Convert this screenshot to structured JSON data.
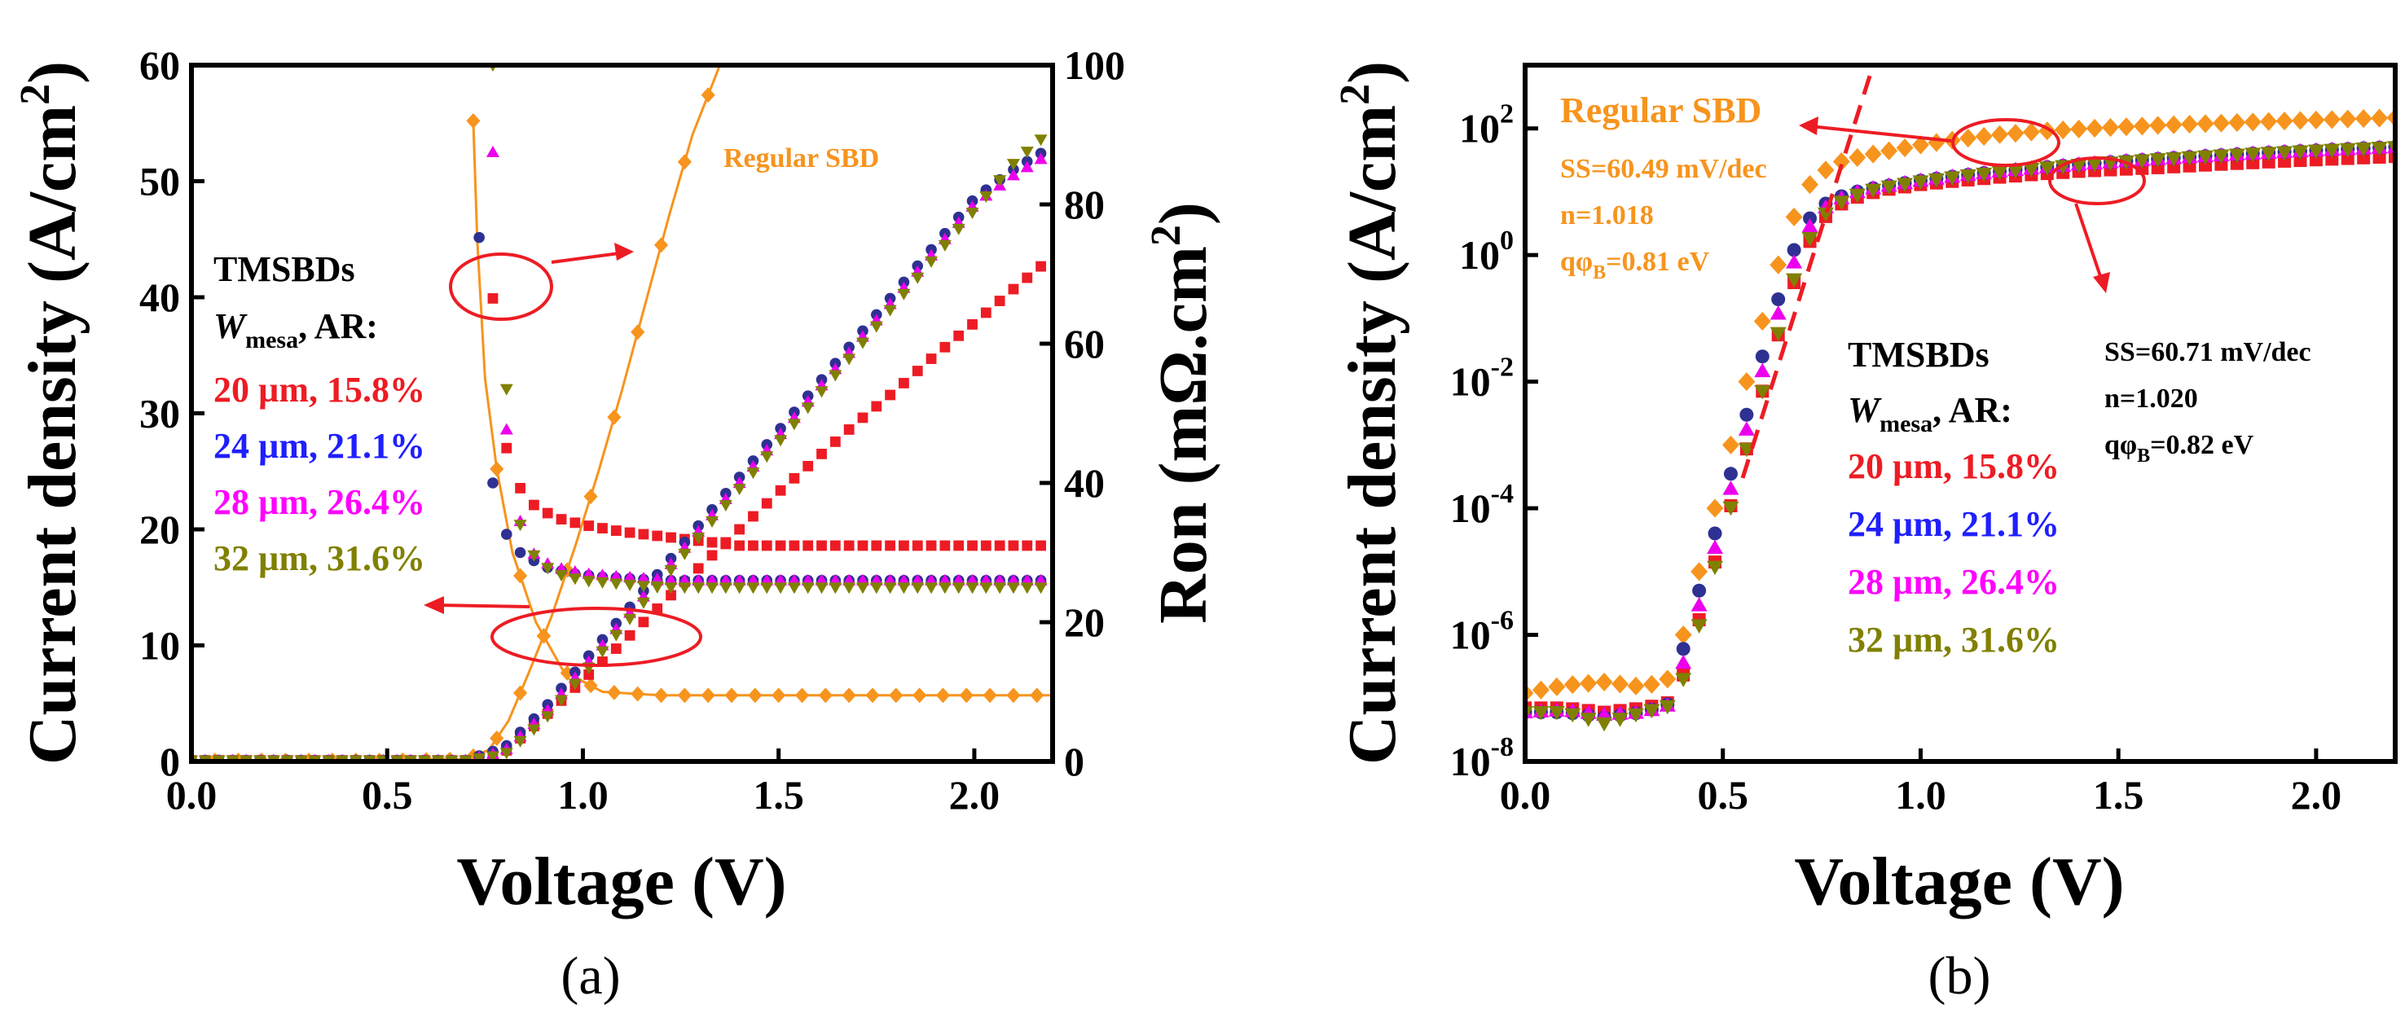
{
  "chart_data": [
    {
      "type": "line",
      "panel_caption": "(a)",
      "xlabel": "Voltage (V)",
      "ylabel": "Current density (A/cm",
      "ylabel_sup": "2",
      "ylabel_close": ")",
      "y2label": "Ron (mΩ.cm",
      "y2label_sup": "2",
      "y2label_close": ")",
      "xlim": [
        0,
        2.2
      ],
      "ylim": [
        0,
        60
      ],
      "y2lim": [
        0,
        100
      ],
      "xticks": [
        "0.0",
        "0.5",
        "1.0",
        "1.5",
        "2.0"
      ],
      "yticks": [
        "0",
        "10",
        "20",
        "30",
        "40",
        "50",
        "60"
      ],
      "y2ticks": [
        "0",
        "20",
        "40",
        "60",
        "80",
        "100"
      ],
      "series": [
        {
          "name": "Regular SBD",
          "axis": "left",
          "color": "#f7941d",
          "marker": "diamond",
          "x": [
            0,
            0.5,
            0.7,
            0.76,
            0.81,
            0.86,
            0.92,
            0.98,
            1.04,
            1.1,
            1.16,
            1.22,
            1.28,
            1.35
          ],
          "y": [
            0.1,
            0.1,
            0.2,
            1.0,
            3.5,
            7.5,
            12.5,
            18.5,
            25.0,
            32.0,
            39.5,
            47.0,
            54.0,
            60.0
          ]
        },
        {
          "name": "Regular SBD Ron",
          "axis": "right",
          "color": "#f7941d",
          "marker": "diamond",
          "x": [
            0.72,
            0.73,
            0.75,
            0.78,
            0.82,
            0.88,
            0.95,
            1.05,
            1.2,
            1.4,
            1.6,
            1.8,
            2.0,
            2.2
          ],
          "y": [
            92,
            75,
            55,
            42,
            30,
            20,
            13,
            10,
            9.5,
            9.5,
            9.5,
            9.5,
            9.5,
            9.5
          ]
        },
        {
          "name": "20 µm, 15.8%",
          "axis": "left",
          "color": "#ed1c24",
          "marker": "square",
          "x": [
            0,
            0.5,
            0.7,
            0.8,
            0.9,
            1.0,
            1.1,
            1.2,
            1.3,
            1.4,
            1.5,
            1.6,
            1.7,
            1.8,
            1.9,
            2.0,
            2.1,
            2.2
          ],
          "y": [
            0.1,
            0.1,
            0.1,
            0.8,
            3.8,
            7.0,
            10.2,
            13.5,
            16.8,
            20.0,
            23.2,
            26.2,
            29.2,
            32.0,
            35.0,
            37.8,
            40.7,
            43.5
          ]
        },
        {
          "name": "20 µm, 15.8% Ron",
          "axis": "right",
          "color": "#ed1c24",
          "marker": "square",
          "x": [
            0.74,
            0.76,
            0.78,
            0.8,
            0.83,
            0.87,
            0.93,
            1.0,
            1.1,
            1.25,
            1.4,
            1.6,
            1.8,
            2.0,
            2.2
          ],
          "y": [
            100,
            75,
            58,
            46,
            40,
            37,
            35,
            34,
            33,
            32,
            31,
            31,
            31,
            31,
            31
          ]
        },
        {
          "name": "24 µm, 21.1%",
          "axis": "left",
          "color": "#2e3192",
          "marker": "circle",
          "x": [
            0,
            0.5,
            0.7,
            0.8,
            0.9,
            1.0,
            1.1,
            1.2,
            1.3,
            1.4,
            1.5,
            1.6,
            1.7,
            1.8,
            1.9,
            2.0,
            2.1,
            2.2
          ],
          "y": [
            0.1,
            0.1,
            0.1,
            1.2,
            4.5,
            8.5,
            12.5,
            16.5,
            20.5,
            24.5,
            28.5,
            32.5,
            36.5,
            40.5,
            44.5,
            48.5,
            51.0,
            53.0
          ]
        },
        {
          "name": "24 µm, 21.1% Ron",
          "axis": "right",
          "color": "#2e3192",
          "marker": "circle",
          "x": [
            0.73,
            0.75,
            0.77,
            0.8,
            0.84,
            0.9,
            0.97,
            1.05,
            1.2,
            1.4,
            1.6,
            1.8,
            2.0,
            2.2
          ],
          "y": [
            82,
            55,
            40,
            33,
            30,
            28,
            27,
            26.5,
            26,
            26,
            26,
            26,
            26,
            26
          ]
        },
        {
          "name": "28 µm, 26.4%",
          "axis": "left",
          "color": "#ec00ec",
          "marker": "triangle-up",
          "x": [
            0,
            0.5,
            0.7,
            0.8,
            0.9,
            1.0,
            1.1,
            1.2,
            1.3,
            1.4,
            1.5,
            1.6,
            1.7,
            1.8,
            1.9,
            2.0,
            2.1,
            2.2
          ],
          "y": [
            0.1,
            0.1,
            0.1,
            0.9,
            4.0,
            8.0,
            12.0,
            16.0,
            20.0,
            24.0,
            28.0,
            32.0,
            36.0,
            40.0,
            44.0,
            48.0,
            50.5,
            52.5
          ]
        },
        {
          "name": "28 µm, 26.4% Ron",
          "axis": "right",
          "color": "#ec00ec",
          "marker": "triangle-up",
          "x": [
            0.76,
            0.78,
            0.8,
            0.83,
            0.87,
            0.92,
            1.0,
            1.1,
            1.25,
            1.4,
            1.6,
            1.8,
            2.0,
            2.2
          ],
          "y": [
            100,
            75,
            50,
            36,
            30,
            28,
            27,
            26.5,
            26,
            26,
            26,
            26,
            26,
            26
          ]
        },
        {
          "name": "32 µm, 31.6%",
          "axis": "left",
          "color": "#808000",
          "marker": "triangle-down",
          "x": [
            0,
            0.5,
            0.7,
            0.8,
            0.9,
            1.0,
            1.1,
            1.2,
            1.3,
            1.4,
            1.5,
            1.6,
            1.7,
            1.8,
            1.9,
            2.0,
            2.1,
            2.2
          ],
          "y": [
            0.1,
            0.1,
            0.1,
            0.6,
            3.5,
            7.5,
            11.5,
            15.5,
            19.5,
            23.5,
            27.5,
            31.5,
            35.5,
            39.5,
            43.5,
            47.5,
            51.5,
            54.5
          ]
        },
        {
          "name": "32 µm, 31.6% Ron",
          "axis": "right",
          "color": "#808000",
          "marker": "triangle-down",
          "x": [
            0.77,
            0.79,
            0.81,
            0.84,
            0.88,
            0.93,
            1.0,
            1.1,
            1.2,
            1.3,
            1.4,
            1.6,
            1.8,
            2.0,
            2.2
          ],
          "y": [
            100,
            70,
            48,
            34,
            29,
            27,
            26,
            25.5,
            25,
            25,
            25,
            25,
            25,
            25,
            25
          ]
        }
      ],
      "annotations": {
        "regular_sbd": "Regular SBD",
        "tmsbds": "TMSBDs",
        "wmesa_w": "W",
        "wmesa_sub": "mesa",
        "wmesa_rest": ", AR:",
        "legend": [
          {
            "label": "20 µm, 15.8%",
            "color": "#ed1c24"
          },
          {
            "label": "24 µm, 21.1%",
            "color": "#1f1fff"
          },
          {
            "label": "28 µm, 26.4%",
            "color": "#ff00ff"
          },
          {
            "label": "32 µm, 31.6%",
            "color": "#808000"
          }
        ]
      }
    },
    {
      "type": "scatter",
      "panel_caption": "(b)",
      "xlabel": "Voltage (V)",
      "ylabel": "Current density (A/cm",
      "ylabel_sup": "2",
      "ylabel_close": ")",
      "yscale": "log",
      "xlim": [
        0,
        2.2
      ],
      "ylim": [
        1e-08,
        1000
      ],
      "xticks": [
        "0.0",
        "0.5",
        "1.0",
        "1.5",
        "2.0"
      ],
      "yticks": [
        {
          "base": "10",
          "exp": "-8"
        },
        {
          "base": "10",
          "exp": "-6"
        },
        {
          "base": "10",
          "exp": "-4"
        },
        {
          "base": "10",
          "exp": "-2"
        },
        {
          "base": "10",
          "exp": "0"
        },
        {
          "base": "10",
          "exp": "2"
        }
      ],
      "series": [
        {
          "name": "Regular SBD",
          "color": "#f7941d",
          "marker": "diamond",
          "x": [
            0.0,
            0.1,
            0.2,
            0.3,
            0.36,
            0.4,
            0.44,
            0.48,
            0.52,
            0.56,
            0.6,
            0.64,
            0.68,
            0.72,
            0.76,
            0.8,
            0.85,
            0.9,
            1.0,
            1.1,
            1.2,
            1.3,
            1.4,
            1.5,
            1.6,
            1.7,
            1.8,
            1.9,
            2.0,
            2.1,
            2.2
          ],
          "y": [
            1.2e-07,
            1.6e-07,
            1.8e-07,
            1.5e-07,
            2e-07,
            1e-06,
            1e-05,
            0.0001,
            0.001,
            0.01,
            0.09,
            0.7,
            4,
            13,
            22,
            30,
            36,
            42,
            55,
            68,
            80,
            90,
            98,
            105,
            112,
            118,
            124,
            130,
            136,
            142,
            148
          ]
        },
        {
          "name": "20 µm, 15.8%",
          "color": "#ed1c24",
          "marker": "square",
          "x": [
            0.0,
            0.1,
            0.2,
            0.3,
            0.38,
            0.42,
            0.46,
            0.5,
            0.54,
            0.58,
            0.62,
            0.66,
            0.7,
            0.74,
            0.78,
            0.82,
            0.86,
            0.9,
            1.0,
            1.1,
            1.2,
            1.3,
            1.4,
            1.5,
            1.6,
            1.7,
            1.8,
            1.9,
            2.0,
            2.1,
            2.2
          ],
          "y": [
            7e-08,
            7e-08,
            6e-08,
            7e-08,
            9e-08,
            6e-07,
            5e-06,
            4e-05,
            0.0003,
            0.0025,
            0.02,
            0.15,
            0.9,
            3,
            5.5,
            7.5,
            9,
            10.5,
            13,
            15,
            17,
            19,
            21,
            22.5,
            24,
            26,
            28,
            30,
            32,
            34,
            36
          ]
        },
        {
          "name": "24 µm, 21.1%",
          "color": "#2e3192",
          "marker": "circle",
          "x": [
            0.0,
            0.1,
            0.2,
            0.3,
            0.36,
            0.4,
            0.44,
            0.48,
            0.52,
            0.56,
            0.6,
            0.64,
            0.68,
            0.72,
            0.76,
            0.8,
            0.85,
            0.9,
            1.0,
            1.1,
            1.2,
            1.3,
            1.4,
            1.5,
            1.6,
            1.7,
            1.8,
            1.9,
            2.0,
            2.1,
            2.2
          ],
          "y": [
            6e-08,
            6e-08,
            5e-08,
            6e-08,
            8e-08,
            6e-07,
            5e-06,
            4e-05,
            0.00035,
            0.003,
            0.025,
            0.2,
            1.2,
            3.8,
            6.5,
            8.5,
            10.5,
            12,
            15,
            18,
            21,
            24,
            27,
            30,
            33,
            36,
            39,
            42,
            45,
            48,
            51
          ]
        },
        {
          "name": "28 µm, 26.4%",
          "color": "#ec00ec",
          "marker": "triangle-up",
          "x": [
            0.0,
            0.1,
            0.2,
            0.3,
            0.37,
            0.41,
            0.45,
            0.49,
            0.53,
            0.57,
            0.61,
            0.65,
            0.69,
            0.73,
            0.77,
            0.81,
            0.85,
            0.9,
            1.0,
            1.1,
            1.2,
            1.3,
            1.4,
            1.5,
            1.6,
            1.7,
            1.8,
            1.9,
            2.0,
            2.1,
            2.2
          ],
          "y": [
            6e-08,
            6.5e-08,
            5.5e-08,
            6e-08,
            8e-08,
            6e-07,
            5e-06,
            4e-05,
            0.00035,
            0.003,
            0.025,
            0.2,
            1.2,
            3.8,
            6.5,
            8.5,
            10.5,
            12,
            15,
            18,
            21,
            24,
            27,
            30,
            33,
            36,
            39,
            42,
            45,
            48,
            51
          ]
        },
        {
          "name": "32 µm, 31.6%",
          "color": "#808000",
          "marker": "triangle-down",
          "x": [
            0.0,
            0.1,
            0.2,
            0.3,
            0.38,
            0.42,
            0.46,
            0.5,
            0.54,
            0.58,
            0.62,
            0.66,
            0.7,
            0.74,
            0.78,
            0.82,
            0.86,
            0.9,
            1.0,
            1.1,
            1.2,
            1.3,
            1.4,
            1.5,
            1.6,
            1.7,
            1.8,
            1.9,
            2.0,
            2.1,
            2.2
          ],
          "y": [
            6e-08,
            6e-08,
            4e-08,
            6e-08,
            8e-08,
            5e-07,
            4e-06,
            3.5e-05,
            0.0003,
            0.0025,
            0.02,
            0.17,
            1.0,
            3.4,
            6,
            8,
            10,
            11.5,
            14.5,
            17.5,
            20.5,
            23.5,
            26.5,
            29.5,
            32.5,
            35.5,
            38.5,
            41.5,
            44.5,
            47.5,
            50.5
          ]
        }
      ],
      "fit_line": {
        "color": "#ed1c24",
        "x": [
          0.55,
          0.88
        ],
        "y": [
          0.0003,
          1000
        ]
      },
      "annotations": {
        "regular_sbd": "Regular SBD",
        "regular_ss": "SS=60.49 mV/dec",
        "regular_n": "n=1.018",
        "regular_phi_q": "qφ",
        "regular_phi_sub": "B",
        "regular_phi_val": "=0.81 eV",
        "tm_ss": "SS=60.71 mV/dec",
        "tm_n": "n=1.020",
        "tm_phi_q": "qφ",
        "tm_phi_sub": "B",
        "tm_phi_val": "=0.82 eV",
        "tmsbds": "TMSBDs",
        "wmesa_w": "W",
        "wmesa_sub": "mesa",
        "wmesa_rest": ", AR:",
        "legend": [
          {
            "label": "20 µm, 15.8%",
            "color": "#ed1c24"
          },
          {
            "label": "24 µm, 21.1%",
            "color": "#1f1fff"
          },
          {
            "label": "28 µm, 26.4%",
            "color": "#ff00ff"
          },
          {
            "label": "32 µm, 31.6%",
            "color": "#808000"
          }
        ]
      }
    }
  ]
}
